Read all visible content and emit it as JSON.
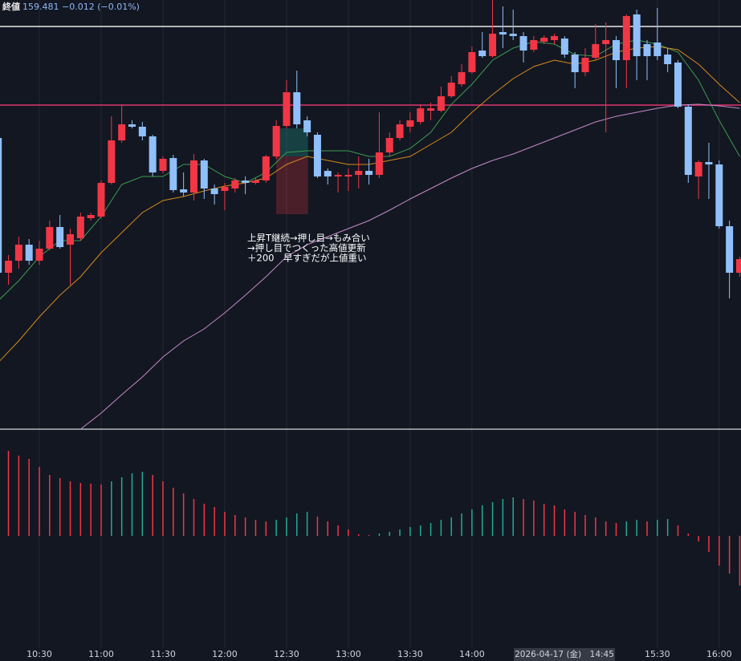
{
  "header": {
    "label": "終値",
    "close": "159.481",
    "change": "−0.012 (−0.01%)"
  },
  "chart_data": [
    {
      "type": "candlestick",
      "categories": [
        null,
        null,
        null,
        null,
        "10:30",
        null,
        null,
        null,
        null,
        null,
        "11:00",
        null,
        null,
        null,
        null,
        null,
        "11:30",
        null,
        null,
        null,
        null,
        null,
        "12:00",
        null,
        null,
        null,
        null,
        null,
        "12:30",
        null,
        null,
        null,
        null,
        null,
        "13:00",
        null,
        null,
        null,
        null,
        null,
        "13:30",
        null,
        null,
        null,
        null,
        null,
        "14:00",
        null,
        null,
        null,
        null,
        null,
        null,
        null,
        null,
        null,
        null,
        null,
        null,
        null,
        null,
        null,
        null,
        null,
        "15:30",
        null,
        null,
        null,
        null,
        null,
        "16:00",
        null,
        null
      ],
      "open": [
        159.632,
        159.464,
        159.479,
        159.499,
        159.479,
        159.494,
        159.521,
        159.499,
        159.507,
        159.532,
        159.534,
        159.576,
        159.629,
        159.649,
        159.646,
        159.634,
        159.591,
        159.607,
        159.568,
        159.564,
        159.604,
        159.569,
        159.566,
        159.569,
        159.579,
        159.576,
        159.579,
        159.609,
        159.647,
        159.689,
        159.654,
        159.636,
        159.591,
        159.584,
        159.584,
        159.586,
        159.591,
        159.586,
        159.614,
        159.632,
        159.646,
        159.652,
        159.666,
        159.666,
        159.684,
        159.699,
        159.714,
        159.741,
        159.734,
        159.764,
        159.762,
        159.759,
        159.742,
        159.752,
        159.754,
        159.756,
        159.736,
        159.714,
        159.732,
        159.749,
        159.754,
        159.729,
        159.786,
        159.749,
        159.751,
        159.736,
        159.726,
        159.671,
        159.584,
        159.602,
        159.599,
        159.522,
        159.464
      ],
      "high": [
        159.634,
        159.486,
        159.509,
        159.506,
        159.504,
        159.529,
        159.536,
        159.519,
        159.539,
        159.539,
        159.579,
        159.659,
        159.674,
        159.654,
        159.652,
        159.636,
        159.609,
        159.611,
        159.589,
        159.612,
        159.606,
        159.574,
        159.576,
        159.582,
        159.584,
        159.582,
        159.611,
        159.654,
        159.704,
        159.716,
        159.659,
        159.639,
        159.594,
        159.589,
        159.594,
        159.609,
        159.606,
        159.664,
        159.639,
        159.654,
        159.664,
        159.674,
        159.676,
        159.696,
        159.709,
        159.724,
        159.746,
        159.764,
        159.804,
        159.796,
        159.792,
        159.764,
        159.759,
        159.76,
        159.762,
        159.759,
        159.739,
        159.744,
        159.774,
        159.776,
        159.759,
        159.786,
        159.792,
        159.754,
        159.794,
        159.744,
        159.729,
        159.674,
        159.604,
        159.626,
        159.604,
        159.529,
        159.484
      ],
      "low": [
        159.459,
        159.449,
        159.469,
        159.474,
        159.474,
        159.492,
        159.494,
        159.449,
        159.504,
        159.529,
        159.532,
        159.574,
        159.626,
        159.644,
        159.629,
        159.584,
        159.588,
        159.564,
        159.559,
        159.554,
        159.556,
        159.549,
        159.542,
        159.564,
        159.562,
        159.574,
        159.576,
        159.606,
        159.644,
        159.644,
        159.634,
        159.582,
        159.574,
        159.564,
        159.566,
        159.569,
        159.574,
        159.582,
        159.609,
        159.629,
        159.639,
        159.649,
        159.654,
        159.664,
        159.682,
        159.696,
        159.712,
        159.732,
        159.732,
        159.744,
        159.754,
        159.726,
        159.739,
        159.749,
        159.749,
        159.732,
        159.694,
        159.709,
        159.729,
        159.639,
        159.694,
        159.694,
        159.704,
        159.704,
        159.729,
        159.714,
        159.669,
        159.576,
        159.556,
        159.556,
        159.519,
        159.432,
        159.459
      ],
      "close": [
        159.464,
        159.479,
        159.499,
        159.479,
        159.494,
        159.521,
        159.496,
        159.512,
        159.534,
        159.536,
        159.576,
        159.629,
        159.649,
        159.646,
        159.634,
        159.589,
        159.606,
        159.567,
        159.564,
        159.604,
        159.569,
        159.562,
        159.571,
        159.579,
        159.576,
        159.579,
        159.609,
        159.647,
        159.689,
        159.649,
        159.639,
        159.584,
        159.584,
        159.586,
        159.586,
        159.591,
        159.586,
        159.614,
        159.632,
        159.649,
        159.654,
        159.669,
        159.669,
        159.684,
        159.701,
        159.714,
        159.739,
        159.734,
        159.762,
        159.761,
        159.759,
        159.741,
        159.754,
        159.757,
        159.759,
        159.736,
        159.714,
        159.732,
        159.749,
        159.754,
        159.729,
        159.784,
        159.734,
        159.734,
        159.734,
        159.724,
        159.671,
        159.586,
        159.602,
        159.599,
        159.522,
        159.464,
        159.481
      ],
      "up_color": "#f23645",
      "down_color": "#90bff9",
      "ylim": [
        159.269,
        159.804
      ],
      "moving_averages": [
        {
          "color": "#3d9a50",
          "x": [
            0,
            2,
            4,
            6,
            8,
            10,
            12,
            14,
            16,
            18,
            20,
            22,
            24,
            26,
            28,
            30,
            32,
            34,
            36,
            38,
            40,
            42,
            44,
            46,
            48,
            50,
            52,
            54,
            56,
            58,
            60,
            62,
            64,
            66,
            68,
            70,
            72
          ],
          "values": [
            159.429,
            159.454,
            159.484,
            159.504,
            159.504,
            159.534,
            159.574,
            159.584,
            159.584,
            159.599,
            159.599,
            159.584,
            159.576,
            159.589,
            159.614,
            159.616,
            159.616,
            159.616,
            159.609,
            159.609,
            159.619,
            159.639,
            159.674,
            159.699,
            159.729,
            159.744,
            159.752,
            159.749,
            159.736,
            159.734,
            159.749,
            159.754,
            159.749,
            159.739,
            159.704,
            159.654,
            159.609
          ]
        },
        {
          "color": "#d38a1c",
          "x": [
            0,
            2,
            4,
            6,
            8,
            10,
            12,
            14,
            16,
            18,
            20,
            22,
            24,
            26,
            28,
            30,
            32,
            34,
            36,
            38,
            40,
            42,
            44,
            46,
            48,
            50,
            52,
            54,
            56,
            58,
            60,
            62,
            64,
            66,
            68,
            70,
            72
          ],
          "values": [
            159.352,
            159.379,
            159.409,
            159.436,
            159.459,
            159.489,
            159.514,
            159.539,
            159.554,
            159.559,
            159.566,
            159.572,
            159.576,
            159.582,
            159.599,
            159.609,
            159.604,
            159.599,
            159.599,
            159.604,
            159.609,
            159.624,
            159.639,
            159.664,
            159.686,
            159.706,
            159.721,
            159.729,
            159.724,
            159.729,
            159.739,
            159.744,
            159.746,
            159.742,
            159.724,
            159.699,
            159.676
          ]
        },
        {
          "color": "#c48ac8",
          "x": [
            0,
            2,
            4,
            6,
            8,
            10,
            12,
            14,
            16,
            18,
            20,
            22,
            24,
            26,
            28,
            30,
            32,
            34,
            36,
            38,
            40,
            42,
            44,
            46,
            48,
            50,
            52,
            54,
            56,
            58,
            60,
            62,
            64,
            66,
            68,
            70,
            72
          ],
          "values": [
            null,
            null,
            null,
            null,
            159.269,
            159.289,
            159.312,
            159.334,
            159.359,
            159.379,
            159.394,
            159.414,
            159.436,
            159.459,
            159.484,
            159.499,
            159.509,
            159.519,
            159.529,
            159.542,
            159.556,
            159.569,
            159.582,
            159.594,
            159.604,
            159.612,
            159.622,
            159.632,
            159.642,
            159.652,
            159.659,
            159.664,
            159.669,
            159.673,
            159.674,
            159.672,
            159.669
          ]
        }
      ],
      "hlines": [
        {
          "value": 159.771,
          "color": "#e8e8e8"
        },
        {
          "value": 159.673,
          "color": "#e0336f"
        }
      ],
      "position": {
        "entry": 159.609,
        "target": 159.644,
        "stop": 159.537,
        "start_index": 27,
        "end_index": 30
      },
      "annotation": [
        "上昇T継続→押し目→もみ合い",
        "→押し目でつくった高値更新",
        "＋200　早すぎだが上値重い"
      ],
      "crosshair_label": "2026-04-17 (金)　14:45"
    },
    {
      "type": "bar",
      "values": [
        null,
        0.106,
        0.1,
        0.096,
        0.086,
        0.076,
        0.072,
        0.068,
        0.066,
        0.065,
        0.064,
        0.068,
        0.073,
        0.078,
        0.08,
        0.076,
        0.068,
        0.06,
        0.053,
        0.046,
        0.04,
        0.036,
        0.03,
        0.026,
        0.023,
        0.02,
        0.018,
        0.02,
        0.023,
        0.028,
        0.03,
        0.024,
        0.018,
        0.013,
        0.008,
        0.002,
        0.001,
        0.003,
        0.005,
        0.008,
        0.011,
        0.013,
        0.016,
        0.02,
        0.023,
        0.028,
        0.033,
        0.038,
        0.042,
        0.046,
        0.048,
        0.046,
        0.044,
        0.04,
        0.038,
        0.033,
        0.03,
        0.026,
        0.023,
        0.018,
        0.016,
        0.018,
        0.02,
        0.018,
        0.02,
        0.021,
        0.013,
        0.003,
        -0.007,
        -0.02,
        -0.037,
        -0.047,
        -0.062
      ],
      "rising_color": "#22ab94",
      "falling_color": "#f23645",
      "ylim": [
        -0.14,
        0.132
      ]
    }
  ]
}
